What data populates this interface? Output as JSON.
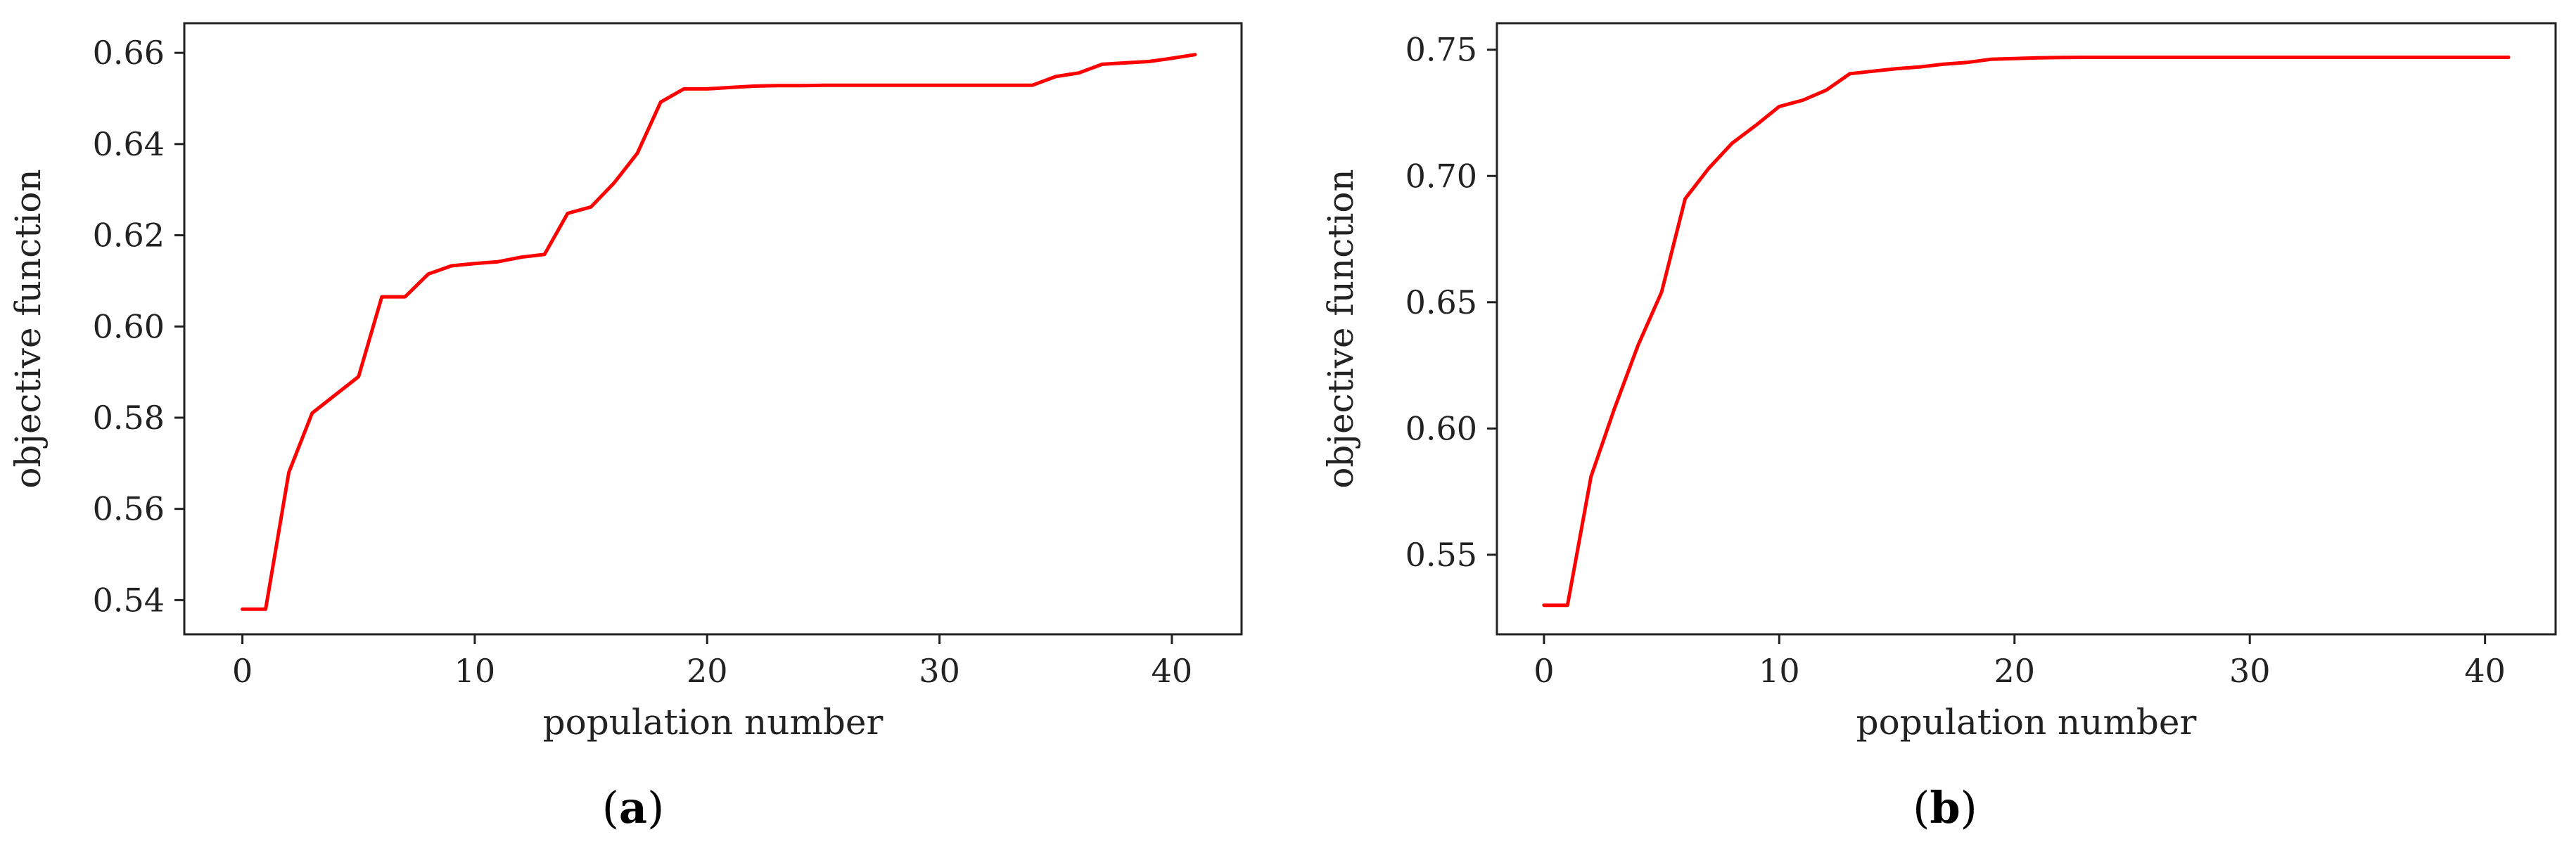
{
  "chart_data": [
    {
      "type": "line",
      "panel_label": "a",
      "title": "",
      "xlabel": "population number",
      "ylabel": "objective function",
      "xlim": [
        -2.5,
        43
      ],
      "ylim": [
        0.5325,
        0.6665
      ],
      "x_ticks": [
        0,
        10,
        20,
        30,
        40
      ],
      "x_tick_labels": [
        "0",
        "10",
        "20",
        "30",
        "40"
      ],
      "y_ticks": [
        0.54,
        0.56,
        0.58,
        0.6,
        0.62,
        0.64,
        0.66
      ],
      "y_tick_labels": [
        "0.54",
        "0.56",
        "0.58",
        "0.60",
        "0.62",
        "0.64",
        "0.66"
      ],
      "grid": false,
      "series": [
        {
          "color": "#ff0000",
          "x": [
            0,
            1,
            2,
            3,
            4,
            5,
            6,
            7,
            8,
            9,
            10,
            11,
            12,
            13,
            14,
            15,
            16,
            17,
            18,
            19,
            20,
            21,
            22,
            23,
            24,
            25,
            26,
            27,
            28,
            29,
            30,
            31,
            32,
            33,
            34,
            35,
            36,
            37,
            38,
            39,
            40,
            41
          ],
          "y": [
            0.538,
            0.538,
            0.568,
            0.581,
            0.585,
            0.589,
            0.6065,
            0.6065,
            0.6115,
            0.6133,
            0.6138,
            0.6142,
            0.6152,
            0.6158,
            0.6248,
            0.6262,
            0.6315,
            0.638,
            0.6492,
            0.6521,
            0.6521,
            0.6524,
            0.6527,
            0.6528,
            0.6528,
            0.6529,
            0.6529,
            0.6529,
            0.6529,
            0.6529,
            0.6529,
            0.6529,
            0.6529,
            0.6529,
            0.6529,
            0.6548,
            0.6556,
            0.6575,
            0.6578,
            0.6581,
            0.6588,
            0.6596
          ]
        }
      ]
    },
    {
      "type": "line",
      "panel_label": "b",
      "title": "",
      "xlabel": "population number",
      "ylabel": "objective function",
      "xlim": [
        -2.0,
        43
      ],
      "ylim": [
        0.5185,
        0.7605
      ],
      "x_ticks": [
        0,
        10,
        20,
        30,
        40
      ],
      "x_tick_labels": [
        "0",
        "10",
        "20",
        "30",
        "40"
      ],
      "y_ticks": [
        0.55,
        0.6,
        0.65,
        0.7,
        0.75
      ],
      "y_tick_labels": [
        "0.55",
        "0.60",
        "0.65",
        "0.70",
        "0.75"
      ],
      "grid": false,
      "series": [
        {
          "color": "#ff0000",
          "x": [
            0,
            1,
            2,
            3,
            4,
            5,
            6,
            7,
            8,
            9,
            10,
            11,
            12,
            13,
            14,
            15,
            16,
            17,
            18,
            19,
            20,
            21,
            22,
            23,
            24,
            25,
            26,
            27,
            28,
            29,
            30,
            31,
            32,
            33,
            34,
            35,
            36,
            37,
            38,
            39,
            40,
            41
          ],
          "y": [
            0.53,
            0.53,
            0.581,
            0.608,
            0.633,
            0.654,
            0.691,
            0.703,
            0.713,
            0.72,
            0.7275,
            0.73,
            0.734,
            0.7405,
            0.7415,
            0.7425,
            0.7432,
            0.7443,
            0.745,
            0.7462,
            0.7465,
            0.7468,
            0.7469,
            0.747,
            0.747,
            0.747,
            0.747,
            0.747,
            0.747,
            0.747,
            0.747,
            0.747,
            0.747,
            0.747,
            0.747,
            0.747,
            0.747,
            0.747,
            0.747,
            0.747,
            0.747,
            0.747
          ]
        }
      ]
    }
  ]
}
